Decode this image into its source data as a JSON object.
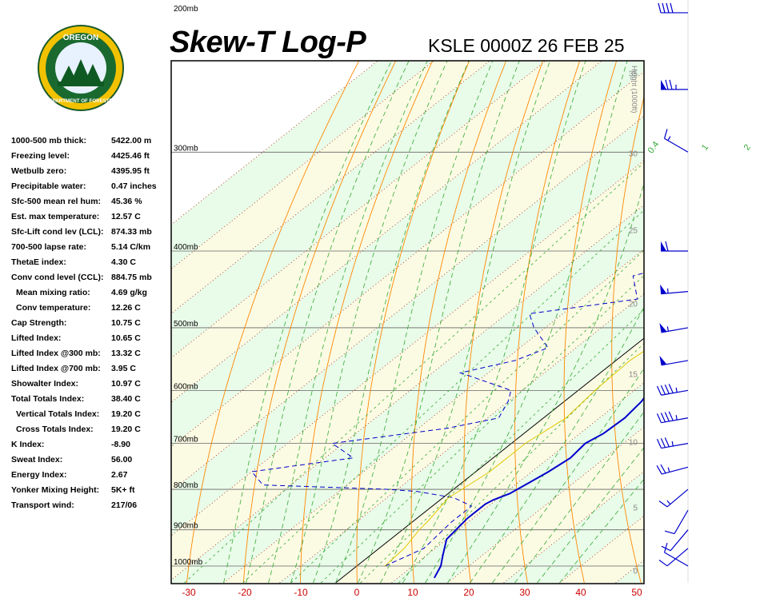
{
  "header": {
    "title": "Skew-T Log-P",
    "station": "KSLE 0000Z 26 FEB 25"
  },
  "logo": {
    "top_text": "OREGON",
    "bottom_text": "DEPARTMENT OF FORESTRY"
  },
  "indices": [
    {
      "label": "1000-500 mb thick:",
      "value": "5422.00 m"
    },
    {
      "label": "Freezing level:",
      "value": "4425.46 ft"
    },
    {
      "label": "Wetbulb zero:",
      "value": "4395.95 ft"
    },
    {
      "label": "Precipitable water:",
      "value": "0.47 inches"
    },
    {
      "label": "Sfc-500 mean rel hum:",
      "value": "45.36 %"
    },
    {
      "label": "Est. max temperature:",
      "value": "12.57 C"
    },
    {
      "label": "Sfc-Lift cond lev (LCL):",
      "value": "874.33 mb"
    },
    {
      "label": "700-500 lapse rate:",
      "value": "5.14 C/km"
    },
    {
      "label": "ThetaE index:",
      "value": "4.30 C"
    },
    {
      "label": "Conv cond level (CCL):",
      "value": "884.75 mb"
    },
    {
      "label": "Mean mixing ratio:",
      "value": "4.69 g/kg",
      "indent": true
    },
    {
      "label": "Conv temperature:",
      "value": "12.26 C",
      "indent": true
    },
    {
      "label": "Cap Strength:",
      "value": "10.75 C"
    },
    {
      "label": "Lifted Index:",
      "value": "10.65 C"
    },
    {
      "label": "Lifted Index @300 mb:",
      "value": "13.32 C"
    },
    {
      "label": "Lifted Index @700 mb:",
      "value": "3.95 C"
    },
    {
      "label": "Showalter Index:",
      "value": "10.97 C"
    },
    {
      "label": "Total Totals Index:",
      "value": "38.40 C"
    },
    {
      "label": "Vertical Totals Index:",
      "value": "19.20 C",
      "indent": true
    },
    {
      "label": "Cross Totals Index:",
      "value": "19.20 C",
      "indent": true
    },
    {
      "label": "K Index:",
      "value": "-8.90"
    },
    {
      "label": "Sweat Index:",
      "value": "56.00"
    },
    {
      "label": "Energy Index:",
      "value": "2.67"
    },
    {
      "label": "Yonker Mixing Height:",
      "value": "5K+ ft"
    },
    {
      "label": "Transport wind:",
      "value": "217/06"
    }
  ],
  "chart_data": {
    "type": "line",
    "xlabel": "",
    "ylabel": "",
    "height_axis_label": "Height (1000ft)",
    "x_ticks": [
      "-30",
      "-20",
      "-10",
      "0",
      "10",
      "20",
      "30",
      "40",
      "50"
    ],
    "pressure_labels": [
      "200mb",
      "300mb",
      "400mb",
      "500mb",
      "600mb",
      "700mb",
      "800mb",
      "900mb",
      "1000mb"
    ],
    "height_ticks": [
      "50",
      "45",
      "40",
      "35",
      "30",
      "25",
      "20",
      "15",
      "10",
      "5",
      "0"
    ],
    "mixing_ratio_labels": [
      "0.4",
      "1",
      "2",
      "3",
      "5",
      "8"
    ],
    "series": [
      {
        "key": "temperature",
        "color": "#0000cc",
        "points": [
          [
            1035,
            16.5
          ],
          [
            1000,
            15
          ],
          [
            970,
            13
          ],
          [
            925,
            10
          ],
          [
            870,
            9
          ],
          [
            835,
            9
          ],
          [
            825,
            9.5
          ],
          [
            810,
            11
          ],
          [
            785,
            12
          ],
          [
            760,
            13
          ],
          [
            730,
            13.8
          ],
          [
            700,
            13.2
          ],
          [
            680,
            14.2
          ],
          [
            650,
            14.5
          ],
          [
            620,
            13.8
          ],
          [
            600,
            12.8
          ],
          [
            560,
            12
          ],
          [
            520,
            11.5
          ],
          [
            480,
            11.4
          ],
          [
            440,
            12
          ],
          [
            400,
            12.5
          ],
          [
            350,
            13.5
          ],
          [
            300,
            15
          ],
          [
            250,
            16.7
          ],
          [
            200,
            22
          ],
          [
            150,
            30
          ]
        ]
      },
      {
        "key": "dewpoint",
        "color": "#0000cc",
        "points": [
          [
            1000,
            5
          ],
          [
            950,
            8
          ],
          [
            880,
            7
          ],
          [
            840,
            7
          ],
          [
            820,
            2
          ],
          [
            805,
            -6
          ],
          [
            800,
            -12
          ],
          [
            790,
            -35
          ],
          [
            760,
            -40
          ],
          [
            730,
            -25
          ],
          [
            700,
            -32
          ],
          [
            670,
            -15
          ],
          [
            650,
            -8
          ],
          [
            620,
            -10
          ],
          [
            600,
            -12
          ],
          [
            570,
            -25
          ],
          [
            550,
            -18
          ],
          [
            530,
            -15
          ],
          [
            500,
            -22
          ],
          [
            480,
            -26
          ],
          [
            460,
            -10
          ],
          [
            430,
            -16
          ],
          [
            400,
            -5
          ],
          [
            350,
            -14
          ],
          [
            300,
            -22
          ],
          [
            260,
            -27
          ],
          [
            230,
            -30
          ],
          [
            200,
            -34
          ],
          [
            175,
            -33
          ]
        ]
      },
      {
        "key": "parcel",
        "color": "#e0c800",
        "points": [
          [
            1000,
            5
          ],
          [
            950,
            4.5
          ],
          [
            900,
            3
          ],
          [
            874,
            2.5
          ],
          [
            820,
            1
          ],
          [
            760,
            2.5
          ],
          [
            700,
            2.5
          ],
          [
            650,
            4
          ],
          [
            600,
            3
          ],
          [
            550,
            2.5
          ],
          [
            500,
            4
          ],
          [
            450,
            3.5
          ],
          [
            400,
            1
          ],
          [
            350,
            0
          ],
          [
            300,
            -2
          ]
        ]
      }
    ],
    "wind_barbs": [
      {
        "p": 1000,
        "dir": 300,
        "spd": 10
      },
      {
        "p": 950,
        "dir": 230,
        "spd": 10
      },
      {
        "p": 900,
        "dir": 220,
        "spd": 10
      },
      {
        "p": 850,
        "dir": 210,
        "spd": 10
      },
      {
        "p": 800,
        "dir": 230,
        "spd": 15
      },
      {
        "p": 750,
        "dir": 255,
        "spd": 25
      },
      {
        "p": 700,
        "dir": 260,
        "spd": 35
      },
      {
        "p": 650,
        "dir": 260,
        "spd": 45
      },
      {
        "p": 600,
        "dir": 260,
        "spd": 45
      },
      {
        "p": 550,
        "dir": 260,
        "spd": 50
      },
      {
        "p": 500,
        "dir": 260,
        "spd": 55
      },
      {
        "p": 450,
        "dir": 265,
        "spd": 55
      },
      {
        "p": 400,
        "dir": 270,
        "spd": 60
      },
      {
        "p": 300,
        "dir": 300,
        "spd": 15
      },
      {
        "p": 250,
        "dir": 270,
        "spd": 75
      },
      {
        "p": 200,
        "dir": 270,
        "spd": 40
      },
      {
        "p": 150,
        "dir": 280,
        "spd": 30
      }
    ],
    "colors": {
      "dry_adiabat": "#ff8800",
      "moist_adiabat": "#33aa33",
      "mixing_ratio": "#33aa33",
      "isotherm": "#aa2200",
      "freezing_isotherm": "#000000",
      "temp_axis_labels": "#cc0000",
      "band_a": "#fbfbe4",
      "band_b": "#e9fbe9"
    }
  }
}
